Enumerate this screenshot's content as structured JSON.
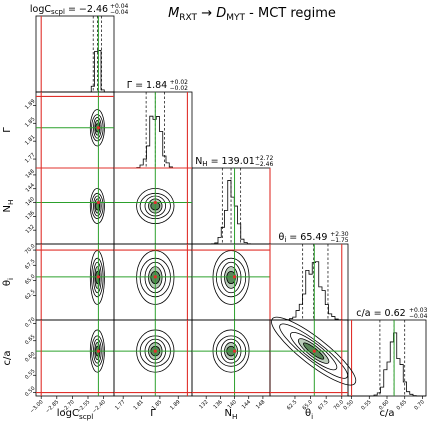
{
  "chart_data": {
    "type": "corner",
    "title_parts": {
      "a": "M",
      "a_sub": "RXT",
      "arrow": "→",
      "b": "D",
      "b_sub": "MYT",
      "tail": " - MCT regime"
    },
    "params": [
      {
        "key": "logC",
        "label": "logC",
        "label_sub": "scpl",
        "summary": "−2.46",
        "err_plus": "+0.04",
        "err_minus": "−0.04",
        "range": [
          -3.05,
          -2.3
        ],
        "ticks": [
          -3.0,
          -2.85,
          -2.7,
          -2.55,
          -2.4
        ],
        "tick_labels": [
          "−3.00",
          "−2.85",
          "−2.70",
          "−2.55",
          "−2.40"
        ],
        "median": -2.46,
        "q": [
          -2.5,
          -2.46,
          -2.42
        ],
        "truth": -2.45,
        "bound_lo": -3.0,
        "bound_hi": null,
        "sigma": 0.02
      },
      {
        "key": "Gamma",
        "label": "Γ",
        "label_sub": "",
        "summary": "1.84",
        "err_plus": "+0.02",
        "err_minus": "−0.02",
        "range": [
          1.75,
          1.92
        ],
        "ticks": [
          1.77,
          1.81,
          1.85,
          1.89
        ],
        "tick_labels": [
          "1.77",
          "1.81",
          "1.85",
          "1.89"
        ],
        "median": 1.84,
        "q": [
          1.82,
          1.84,
          1.86
        ],
        "truth": 1.84,
        "bound_lo": null,
        "bound_hi": 1.91,
        "sigma": 0.012
      },
      {
        "key": "NH",
        "label": "N",
        "label_sub": "H",
        "summary": "139.01",
        "err_plus": "+2.72",
        "err_minus": "−2.46",
        "range": [
          128,
          150
        ],
        "ticks": [
          132,
          136,
          140,
          144,
          148
        ],
        "tick_labels": [
          "132",
          "136",
          "140",
          "144",
          "148"
        ],
        "median": 139.01,
        "q": [
          136.55,
          139.01,
          141.73
        ],
        "truth": 140.0,
        "bound_lo": null,
        "bound_hi": 150.0,
        "sigma": 1.5
      },
      {
        "key": "theta",
        "label": "θ",
        "label_sub": "i",
        "summary": "65.49",
        "err_plus": "+2.30",
        "err_minus": "−1.75",
        "range": [
          58.5,
          71
        ],
        "ticks": [
          62.5,
          65.0,
          67.5,
          70.0
        ],
        "tick_labels": [
          "62.5",
          "65.0",
          "67.5",
          "70.0"
        ],
        "median": 65.49,
        "q": [
          63.74,
          65.49,
          67.79
        ],
        "truth": 65.6,
        "bound_lo": null,
        "bound_hi": 70.0,
        "sigma": 1.3
      },
      {
        "key": "ca",
        "label": "c/a",
        "label_sub": "",
        "summary": "0.62",
        "err_plus": "+0.03",
        "err_minus": "−0.04",
        "range": [
          0.49,
          0.71
        ],
        "ticks": [
          0.5,
          0.55,
          0.6,
          0.65,
          0.7
        ],
        "tick_labels": [
          "0.50",
          "0.55",
          "0.60",
          "0.65",
          "0.70"
        ],
        "median": 0.62,
        "q": [
          0.58,
          0.62,
          0.65
        ],
        "truth": 0.62,
        "bound_lo": 0.5,
        "bound_hi": null,
        "sigma": 0.018
      }
    ],
    "correlations": {
      "4-3": -0.85
    },
    "colors": {
      "truth": "#2ca02c",
      "bound": "#e0302b",
      "contour": "#000000",
      "fill": "#3a6e3a"
    }
  }
}
